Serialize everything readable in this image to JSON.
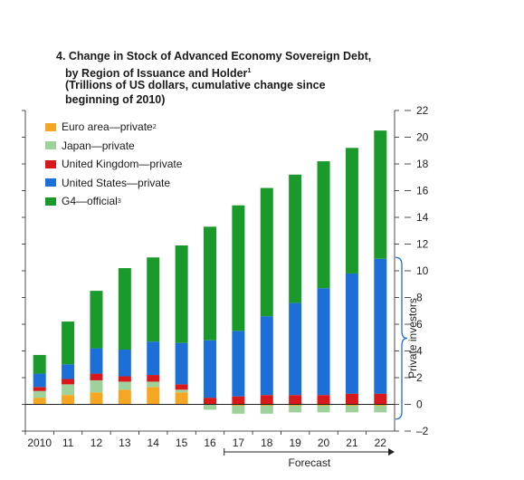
{
  "chart_data": {
    "type": "bar",
    "stacked": true,
    "title_lines": [
      "4. Change in Stock of Advanced Economy Sovereign Debt,",
      "by Region of Issuance and Holder",
      "(Trillions of US dollars, cumulative change since",
      "beginning of 2010)"
    ],
    "title_superscript": "1",
    "categories": [
      "2010",
      "11",
      "12",
      "13",
      "14",
      "15",
      "16",
      "17",
      "18",
      "19",
      "20",
      "21",
      "22"
    ],
    "series": [
      {
        "name": "Euro area—private",
        "superscript": "2",
        "color": "#f5a623",
        "values": [
          0.5,
          0.7,
          0.9,
          1.1,
          1.3,
          0.9,
          0.0,
          -0.1,
          -0.1,
          -0.1,
          -0.1,
          -0.1,
          -0.1
        ]
      },
      {
        "name": "Japan—private",
        "superscript": "",
        "color": "#9fd29b",
        "values": [
          0.5,
          0.8,
          0.9,
          0.6,
          0.4,
          0.2,
          -0.4,
          -0.6,
          -0.6,
          -0.5,
          -0.5,
          -0.5,
          -0.5
        ]
      },
      {
        "name": "United Kingdom—private",
        "superscript": "",
        "color": "#d7191c",
        "values": [
          0.3,
          0.4,
          0.5,
          0.4,
          0.5,
          0.4,
          0.5,
          0.6,
          0.7,
          0.7,
          0.7,
          0.8,
          0.8
        ]
      },
      {
        "name": "United States—private",
        "superscript": "",
        "color": "#1c6fd6",
        "values": [
          1.0,
          1.1,
          1.9,
          2.0,
          2.5,
          3.1,
          4.3,
          4.9,
          5.9,
          6.9,
          8.0,
          9.0,
          10.1
        ]
      },
      {
        "name": "G4—official",
        "superscript": "3",
        "color": "#1a9a2a",
        "values": [
          1.4,
          3.2,
          4.3,
          6.1,
          6.3,
          7.3,
          8.5,
          9.4,
          9.6,
          9.6,
          9.5,
          9.4,
          9.6
        ]
      }
    ],
    "yticks": [
      "–2",
      "0",
      "2",
      "4",
      "6",
      "8",
      "10",
      "12",
      "14",
      "16",
      "18",
      "20",
      "22"
    ],
    "ylim": [
      -2,
      22
    ],
    "bracket_label": "Private investors",
    "forecast_label": "Forecast",
    "forecast_start": "17",
    "axis_position": "right",
    "grid": false
  }
}
